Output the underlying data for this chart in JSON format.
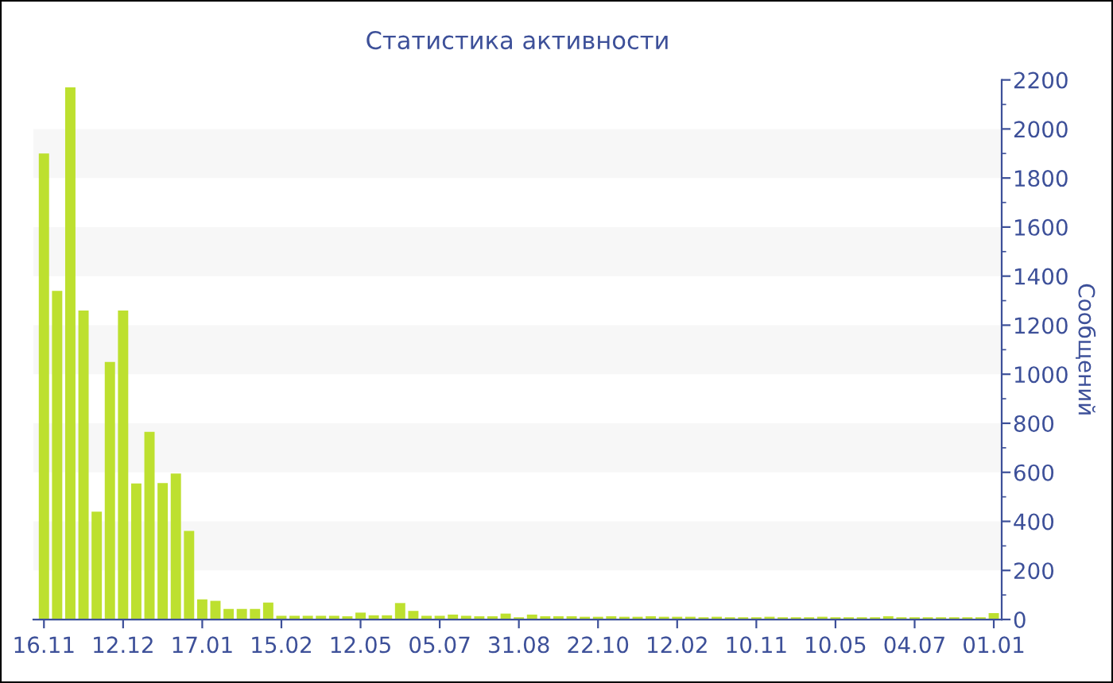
{
  "chart_data": {
    "type": "bar",
    "title": "Статистика активности",
    "ylabel": "Сообщений",
    "categories": [
      "16.11",
      null,
      null,
      null,
      null,
      null,
      "12.12",
      null,
      null,
      null,
      null,
      null,
      "17.01",
      null,
      null,
      null,
      null,
      null,
      "15.02",
      null,
      null,
      null,
      null,
      null,
      "12.05",
      null,
      null,
      null,
      null,
      null,
      "05.07",
      null,
      null,
      null,
      null,
      null,
      "31.08",
      null,
      null,
      null,
      null,
      null,
      "22.10",
      null,
      null,
      null,
      null,
      null,
      "12.02",
      null,
      null,
      null,
      null,
      null,
      "10.11",
      null,
      null,
      null,
      null,
      null,
      "10.05",
      null,
      null,
      null,
      null,
      null,
      "04.07",
      null,
      null,
      null,
      null,
      null,
      "01.01"
    ],
    "values": [
      1900,
      1340,
      2170,
      1260,
      440,
      1050,
      1260,
      555,
      765,
      556,
      595,
      361,
      82,
      76,
      43,
      43,
      43,
      69,
      15,
      15,
      15,
      15,
      15,
      13,
      28,
      17,
      17,
      67,
      35,
      15,
      15,
      20,
      15,
      13,
      13,
      24,
      9,
      20,
      13,
      13,
      13,
      11,
      11,
      13,
      11,
      11,
      13,
      11,
      11,
      11,
      9,
      11,
      9,
      9,
      9,
      11,
      9,
      9,
      9,
      11,
      9,
      9,
      9,
      9,
      13,
      9,
      9,
      9,
      9,
      9,
      9,
      9,
      26
    ],
    "color": "#bde02f",
    "ylim": [
      0,
      2200
    ],
    "yticks": [
      0,
      200,
      400,
      600,
      800,
      1000,
      1200,
      1400,
      1600,
      1800,
      2000,
      2200
    ],
    "bands": [
      {
        "axis": "y",
        "from": 200,
        "to": 400,
        "color": "#f7f7f7"
      },
      {
        "axis": "y",
        "from": 600,
        "to": 800,
        "color": "#f7f7f7"
      },
      {
        "axis": "y",
        "from": 1000,
        "to": 1200,
        "color": "#f7f7f7"
      },
      {
        "axis": "y",
        "from": 1400,
        "to": 1600,
        "color": "#f7f7f7"
      },
      {
        "axis": "y",
        "from": 1800,
        "to": 2000,
        "color": "#f7f7f7"
      }
    ],
    "grid": false,
    "legend": false
  }
}
